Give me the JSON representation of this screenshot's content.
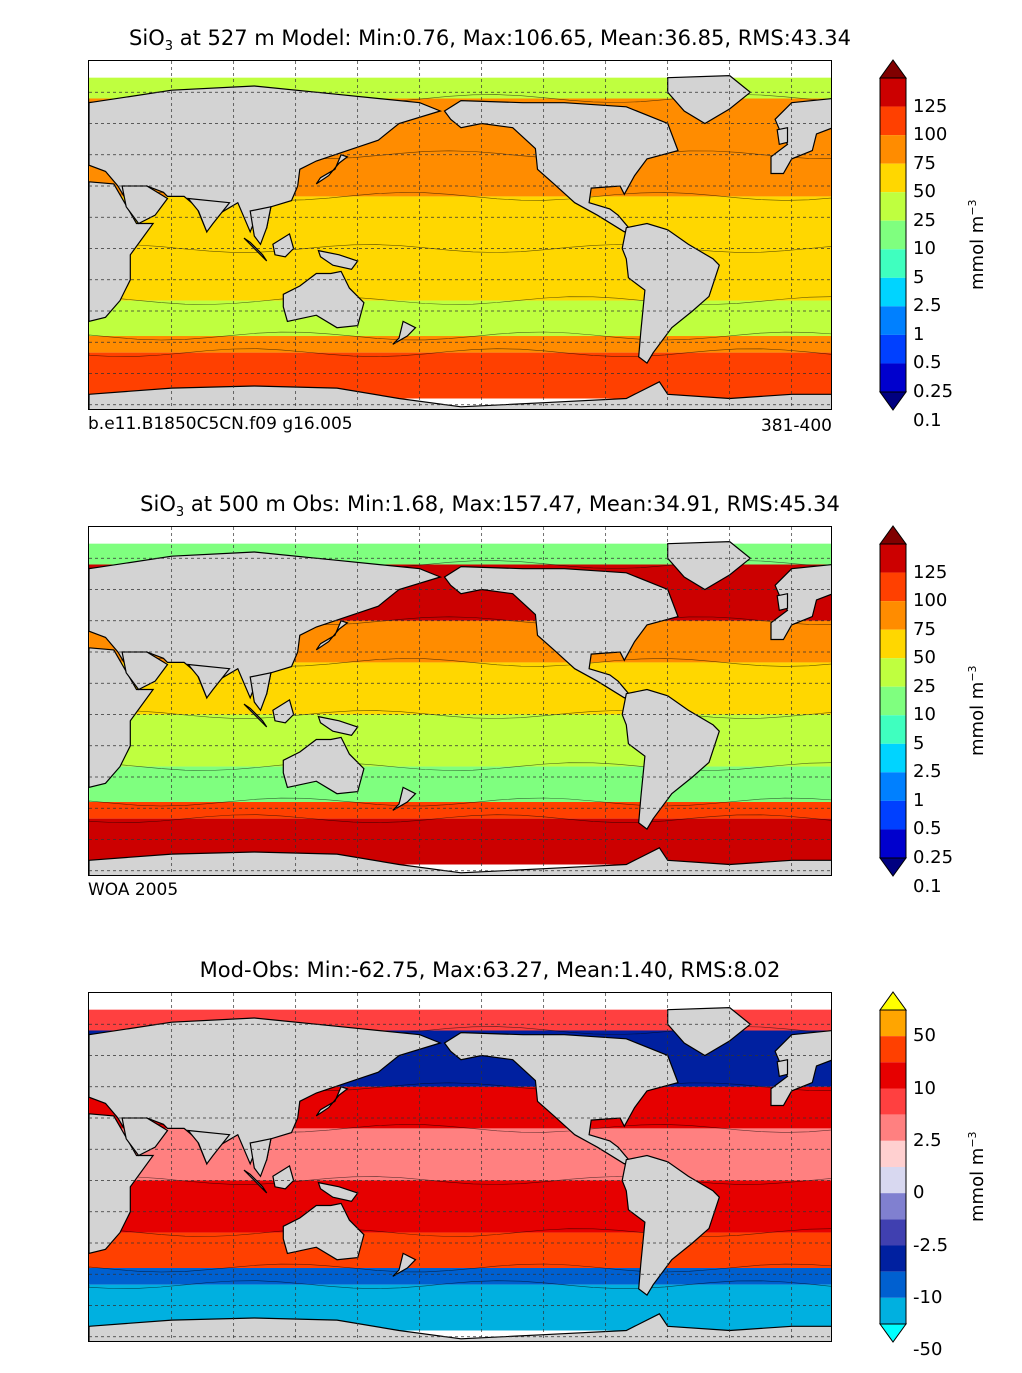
{
  "chart_data": [
    {
      "type": "heatmap",
      "title_prefix": "SiO",
      "title_sub": "3",
      "title_rest": " at 527 m Model: Min:0.76, Max:106.65, Mean:36.85, RMS:43.34",
      "stats": {
        "depth_m": 527,
        "source": "Model",
        "min": 0.76,
        "max": 106.65,
        "mean": 36.85,
        "rms": 43.34
      },
      "footer_left": "b.e11.B1850C5CN.f09 g16.005",
      "footer_right": "381-400",
      "unit_base": "mmol m",
      "unit_exp": "−3",
      "colorbar_ticks": [
        "125",
        "100",
        "75",
        "50",
        "25",
        "10",
        "5",
        "2.5",
        "1",
        "0.5",
        "0.25",
        "0.1"
      ],
      "colorbar_colors": [
        "#800000",
        "#cc0000",
        "#ff4000",
        "#ff8c00",
        "#ffd700",
        "#bfff3f",
        "#7fff7f",
        "#3fffbf",
        "#00d4ff",
        "#0080ff",
        "#0040ff",
        "#0000cd",
        "#000080"
      ],
      "bands": [
        {
          "lat_from": 90,
          "lat_to": 72,
          "color": "#bfff3f"
        },
        {
          "lat_from": 72,
          "lat_to": 45,
          "color": "#ff8c00"
        },
        {
          "lat_from": 45,
          "lat_to": 25,
          "color": "#ff8c00"
        },
        {
          "lat_from": 25,
          "lat_to": 0,
          "color": "#ffd700"
        },
        {
          "lat_from": 0,
          "lat_to": -25,
          "color": "#ffd700"
        },
        {
          "lat_from": -25,
          "lat_to": -42,
          "color": "#bfff3f"
        },
        {
          "lat_from": -42,
          "lat_to": -50,
          "color": "#ff8c00"
        },
        {
          "lat_from": -50,
          "lat_to": -78,
          "color": "#ff4000"
        }
      ]
    },
    {
      "type": "heatmap",
      "title_prefix": "SiO",
      "title_sub": "3",
      "title_rest": " at 500 m Obs: Min:1.68, Max:157.47, Mean:34.91, RMS:45.34",
      "stats": {
        "depth_m": 500,
        "source": "Obs",
        "min": 1.68,
        "max": 157.47,
        "mean": 34.91,
        "rms": 45.34
      },
      "footer_left": "WOA 2005",
      "footer_right": "",
      "unit_base": "mmol m",
      "unit_exp": "−3",
      "colorbar_ticks": [
        "125",
        "100",
        "75",
        "50",
        "25",
        "10",
        "5",
        "2.5",
        "1",
        "0.5",
        "0.25",
        "0.1"
      ],
      "colorbar_colors": [
        "#800000",
        "#cc0000",
        "#ff4000",
        "#ff8c00",
        "#ffd700",
        "#bfff3f",
        "#7fff7f",
        "#3fffbf",
        "#00d4ff",
        "#0080ff",
        "#0040ff",
        "#0000cd",
        "#000080"
      ],
      "bands": [
        {
          "lat_from": 90,
          "lat_to": 72,
          "color": "#7fff7f"
        },
        {
          "lat_from": 72,
          "lat_to": 45,
          "color": "#cc0000"
        },
        {
          "lat_from": 45,
          "lat_to": 25,
          "color": "#ff8c00"
        },
        {
          "lat_from": 25,
          "lat_to": 0,
          "color": "#ffd700"
        },
        {
          "lat_from": 0,
          "lat_to": -25,
          "color": "#bfff3f"
        },
        {
          "lat_from": -25,
          "lat_to": -42,
          "color": "#7fff7f"
        },
        {
          "lat_from": -42,
          "lat_to": -50,
          "color": "#ff4000"
        },
        {
          "lat_from": -50,
          "lat_to": -78,
          "color": "#cc0000"
        }
      ]
    },
    {
      "type": "heatmap",
      "title_prefix": "",
      "title_sub": "",
      "title_rest": "Mod-Obs: Min:-62.75, Max:63.27, Mean:1.40, RMS:8.02",
      "stats": {
        "source": "Mod-Obs",
        "min": -62.75,
        "max": 63.27,
        "mean": 1.4,
        "rms": 8.02
      },
      "footer_left": "",
      "footer_right": "",
      "unit_base": "mmol m",
      "unit_exp": "−3",
      "colorbar_ticks": [
        "50",
        "",
        "10",
        "",
        "2.5",
        "",
        "0",
        "",
        "-2.5",
        "",
        "-10",
        "",
        "-50"
      ],
      "colorbar_colors": [
        "#ffff00",
        "#ffa500",
        "#ff4000",
        "#e60000",
        "#ff4040",
        "#ff8080",
        "#ffd0d0",
        "#d8d8f0",
        "#8080d0",
        "#4040b0",
        "#0020a0",
        "#0060d0",
        "#00b0e0",
        "#00ffff"
      ],
      "bands": [
        {
          "lat_from": 90,
          "lat_to": 72,
          "color": "#ff4040"
        },
        {
          "lat_from": 72,
          "lat_to": 45,
          "color": "#0020a0"
        },
        {
          "lat_from": 45,
          "lat_to": 25,
          "color": "#e60000"
        },
        {
          "lat_from": 25,
          "lat_to": 0,
          "color": "#ff8080"
        },
        {
          "lat_from": 0,
          "lat_to": -25,
          "color": "#e60000"
        },
        {
          "lat_from": -25,
          "lat_to": -42,
          "color": "#ff4000"
        },
        {
          "lat_from": -42,
          "lat_to": -50,
          "color": "#0060d0"
        },
        {
          "lat_from": -50,
          "lat_to": -78,
          "color": "#00b0e0"
        }
      ]
    }
  ],
  "colors": {
    "land": "#d3d3d3",
    "ice": "#ffffff",
    "grid": "#333333"
  }
}
